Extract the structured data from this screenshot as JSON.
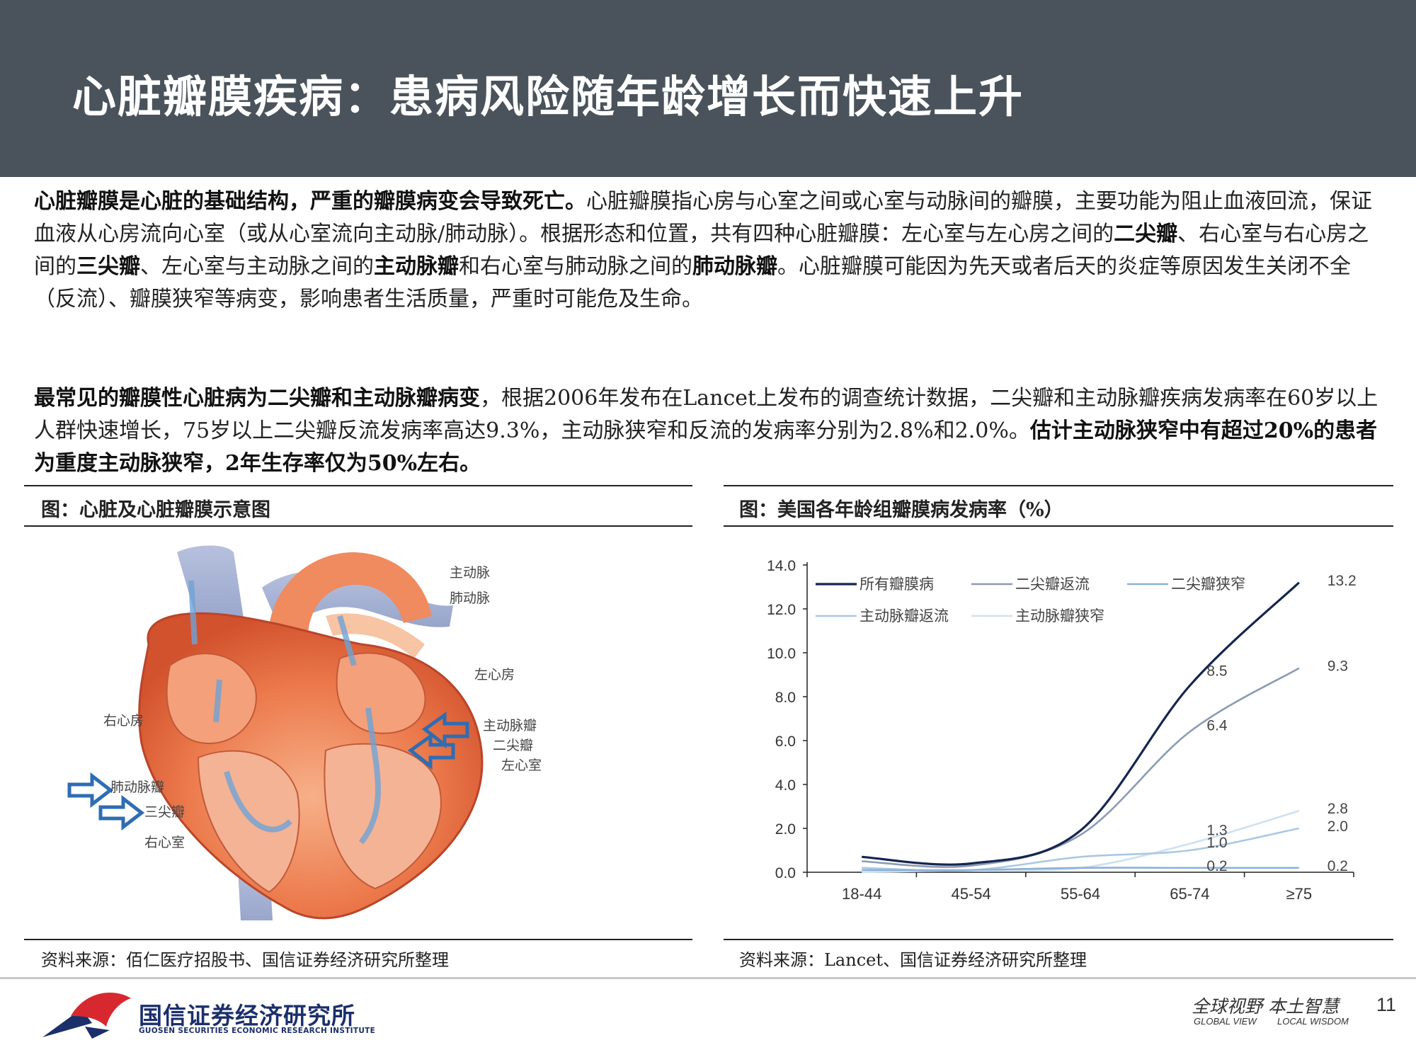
{
  "header": {
    "title": "心脏瓣膜疾病：患病风险随年龄增长而快速上升"
  },
  "paragraph1": {
    "s1": "心脏瓣膜是心脏的基础结构，严重的瓣膜病变会导致死亡。",
    "s2": "心脏瓣膜指心房与心室之间或心室与动脉间的瓣膜，主要功能为阻止血液回流，保证血液从心房流向心室（或从心室流向主动脉/肺动脉）。根据形态和位置，共有四种心脏瓣膜：左心室与左心房之间的",
    "s3": "二尖瓣",
    "s4": "、右心室与右心房之间的",
    "s5": "三尖瓣",
    "s6": "、左心室与主动脉之间的",
    "s7": "主动脉瓣",
    "s8": "和右心室与肺动脉之间的",
    "s9": "肺动脉瓣",
    "s10": "。心脏瓣膜可能因为先天或者后天的炎症等原因发生关闭不全（反流）、瓣膜狭窄等病变，影响患者生活质量，严重时可能危及生命。"
  },
  "paragraph2": {
    "s1": "最常见的瓣膜性心脏病为二尖瓣和主动脉瓣病变",
    "s2": "，根据2006年发布在Lancet上发布的调查统计数据，二尖瓣和主动脉瓣疾病发病率在60岁以上人群快速增长，75岁以上二尖瓣反流发病率高达9.3%，主动脉狭窄和反流的发病率分别为2.8%和2.0%。",
    "s3": "估计主动脉狭窄中有超过20%的患者为重度主动脉狭窄，2年生存率仅为50%左右。"
  },
  "left_panel": {
    "title": "图：心脏及心脏瓣膜示意图",
    "source": "资料来源：佰仁医疗招股书、国信证券经济研究所整理",
    "labels": {
      "aorta": "主动脉",
      "pulmonary_artery": "肺动脉",
      "left_atrium": "左心房",
      "right_atrium": "右心房",
      "aortic_valve": "主动脉瓣",
      "mitral_valve": "二尖瓣",
      "left_ventricle": "左心室",
      "pulmonary_valve": "肺动脉瓣",
      "tricuspid_valve": "三尖瓣",
      "right_ventricle": "右心室"
    },
    "colors": {
      "arrow": "#2e6db4",
      "heart": "#e8623a",
      "vessel": "#8a9bc9"
    }
  },
  "right_panel": {
    "title": "图：美国各年龄组瓣膜病发病率（%）",
    "source": "资料来源：Lancet、国信证券经济研究所整理"
  },
  "chart_data": {
    "type": "line",
    "categories": [
      "18-44",
      "45-54",
      "55-64",
      "65-74",
      "≥75"
    ],
    "ylim": [
      0,
      14
    ],
    "yticks": [
      "0.0",
      "2.0",
      "4.0",
      "6.0",
      "8.0",
      "10.0",
      "12.0",
      "14.0"
    ],
    "legend_position": "top",
    "series": [
      {
        "name": "所有瓣膜病",
        "values": [
          0.7,
          0.4,
          1.9,
          8.5,
          13.2
        ],
        "color": "#14254f",
        "labels": [
          "",
          "",
          "",
          "8.5",
          "13.2"
        ]
      },
      {
        "name": "二尖瓣返流",
        "values": [
          0.5,
          0.3,
          1.7,
          6.4,
          9.3
        ],
        "color": "#8b9bb4",
        "labels": [
          "",
          "",
          "",
          "6.4",
          "9.3"
        ]
      },
      {
        "name": "二尖瓣狭窄",
        "values": [
          0.1,
          0.1,
          0.2,
          0.2,
          0.2
        ],
        "color": "#8cb1d6",
        "labels": [
          "",
          "",
          "",
          "0.2",
          "0.2"
        ]
      },
      {
        "name": "主动脉瓣返流",
        "values": [
          0.2,
          0.1,
          0.7,
          1.0,
          2.0
        ],
        "color": "#a9c8e4",
        "labels": [
          "",
          "",
          "",
          "1.0",
          "2.0"
        ]
      },
      {
        "name": "主动脉瓣狭窄",
        "values": [
          0.0,
          0.1,
          0.2,
          1.3,
          2.8
        ],
        "color": "#cfe1f0",
        "labels": [
          "",
          "",
          "",
          "1.3",
          "2.8"
        ]
      }
    ]
  },
  "footer": {
    "logo_cn": "国信证券经济研究所",
    "logo_en": "GUOSEN SECURITIES ECONOMIC RESEARCH INSTITUTE",
    "slogan_cn": "全球视野 本土智慧",
    "slogan_en1": "GLOBAL VIEW",
    "slogan_en2": "LOCAL WISDOM",
    "page": "11"
  }
}
